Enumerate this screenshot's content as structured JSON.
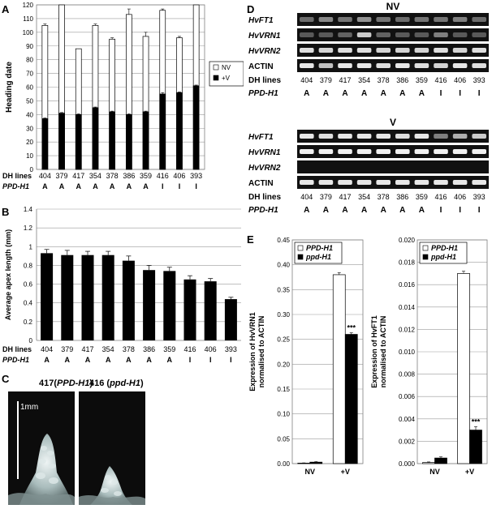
{
  "panelA": {
    "letter": "A",
    "chart_data": {
      "type": "bar",
      "ylabel": "Heading date",
      "ylim": [
        0,
        120
      ],
      "yticks": [
        0,
        10,
        20,
        30,
        40,
        50,
        60,
        70,
        80,
        90,
        100,
        110,
        120
      ],
      "categories": [
        "404",
        "379",
        "417",
        "354",
        "378",
        "386",
        "359",
        "416",
        "406",
        "393"
      ],
      "row1_label": "DH lines",
      "row2_label": "PPD-H1",
      "genotype": [
        "A",
        "A",
        "A",
        "A",
        "A",
        "A",
        "A",
        "I",
        "I",
        "I"
      ],
      "series": [
        {
          "name": "NV",
          "color": "#ffffff",
          "values": [
            105,
            120,
            88,
            105,
            95,
            113,
            97,
            116,
            96,
            120
          ],
          "errors": [
            1,
            0,
            0,
            1,
            1,
            4,
            3,
            1,
            1,
            0
          ]
        },
        {
          "name": "+V",
          "color": "#000000",
          "values": [
            37,
            41,
            40,
            45,
            42,
            40,
            42,
            55,
            56,
            61
          ],
          "errors": [
            0.5,
            0.5,
            0.5,
            0.5,
            0.5,
            0.5,
            0.5,
            1,
            0.5,
            0.5
          ]
        }
      ],
      "legend": "right"
    }
  },
  "panelB": {
    "letter": "B",
    "chart_data": {
      "type": "bar",
      "ylabel": "Average apex length (mm)",
      "ylim": [
        0,
        1.4
      ],
      "yticks": [
        "0",
        "0.2",
        "0.4",
        "0.6",
        "0.8",
        "1",
        "1.2",
        "1.4"
      ],
      "categories": [
        "404",
        "379",
        "417",
        "354",
        "378",
        "386",
        "359",
        "416",
        "406",
        "393"
      ],
      "row1_label": "DH lines",
      "row2_label": "PPD-H1",
      "genotype": [
        "A",
        "A",
        "A",
        "A",
        "A",
        "A",
        "A",
        "I",
        "I",
        "I"
      ],
      "values": [
        0.93,
        0.91,
        0.91,
        0.91,
        0.85,
        0.75,
        0.74,
        0.65,
        0.63,
        0.44
      ],
      "errors": [
        0.04,
        0.05,
        0.04,
        0.04,
        0.05,
        0.05,
        0.04,
        0.04,
        0.03,
        0.02
      ]
    }
  },
  "panelC": {
    "letter": "C",
    "left_label": "417(",
    "left_gene": "PPD-H1",
    "left_close": ")",
    "right_label": "416 (",
    "right_gene": "ppd-H1",
    "right_close": ")",
    "scale_label": "1mm"
  },
  "panelD": {
    "letter": "D",
    "nv_title": "NV",
    "v_title": "V",
    "genes": [
      "HvFT1",
      "HvVRN1",
      "HvVRN2",
      "ACTIN"
    ],
    "row1_label": "DH lines",
    "row2_label": "PPD-H1",
    "lines": [
      "404",
      "379",
      "417",
      "354",
      "378",
      "386",
      "359",
      "416",
      "406",
      "393"
    ],
    "genotype": [
      "A",
      "A",
      "A",
      "A",
      "A",
      "A",
      "A",
      "I",
      "I",
      "I"
    ]
  },
  "panelE": {
    "letter": "E",
    "chart1": {
      "type": "bar",
      "ylabel_line1": "Expression of HvVRN1",
      "ylabel_line2": "normalised to ACTIN",
      "ylim": [
        0,
        0.45
      ],
      "yticks": [
        "0.00",
        "0.05",
        "0.10",
        "0.15",
        "0.20",
        "0.25",
        "0.30",
        "0.35",
        "0.40",
        "0.45"
      ],
      "categories": [
        "NV",
        "+V"
      ],
      "series": [
        {
          "name": "PPD-H1",
          "color": "#ffffff",
          "values": [
            0.001,
            0.38
          ],
          "errors": [
            0.0005,
            0.004
          ]
        },
        {
          "name": "ppd-H1",
          "color": "#000000",
          "values": [
            0.003,
            0.26
          ],
          "errors": [
            0.001,
            0.003
          ]
        }
      ],
      "significance": "***"
    },
    "chart2": {
      "type": "bar",
      "ylabel_line1": "Expression of HvFT1",
      "ylabel_line2": "normalised to ACTIN",
      "ylim": [
        0,
        0.02
      ],
      "yticks": [
        "0.000",
        "0.002",
        "0.004",
        "0.006",
        "0.008",
        "0.010",
        "0.012",
        "0.014",
        "0.016",
        "0.018",
        "0.020"
      ],
      "categories": [
        "NV",
        "+V"
      ],
      "series": [
        {
          "name": "PPD-H1",
          "color": "#ffffff",
          "values": [
            0.0001,
            0.017
          ],
          "errors": [
            5e-05,
            0.0002
          ]
        },
        {
          "name": "ppd-H1",
          "color": "#000000",
          "values": [
            0.0005,
            0.003
          ],
          "errors": [
            0.0001,
            0.0003
          ]
        }
      ],
      "significance": "***"
    }
  }
}
